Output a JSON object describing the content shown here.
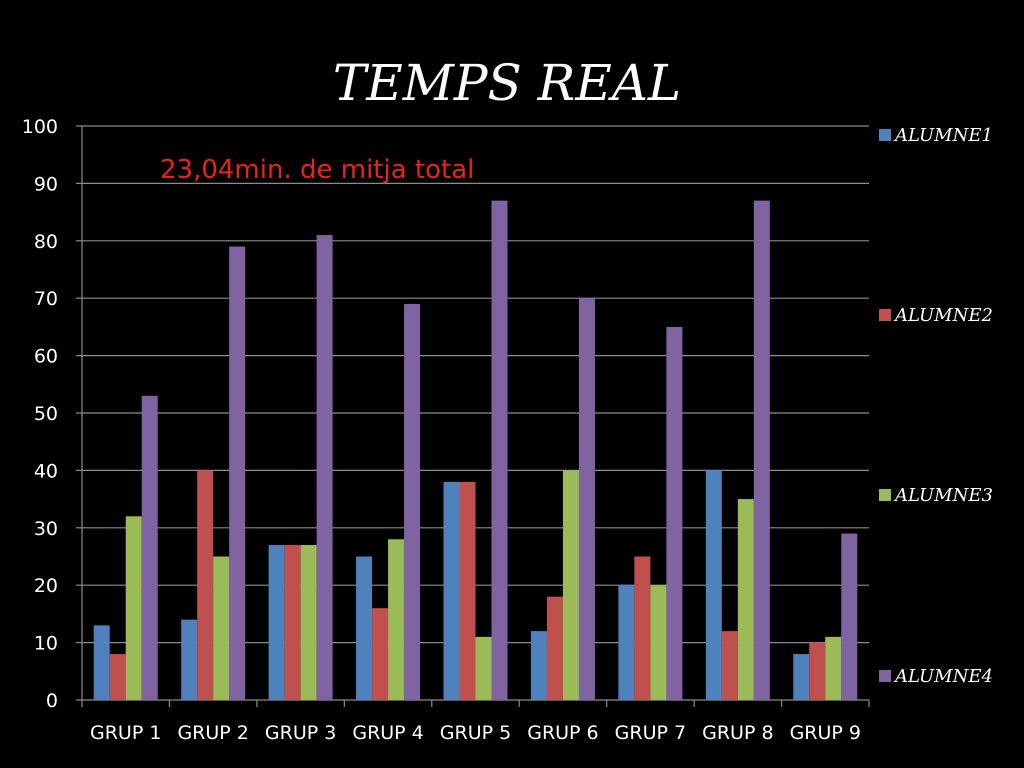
{
  "chart_data": {
    "type": "bar",
    "title": "TEMPS REAL",
    "annotation": "23,04min. de mitja total",
    "categories": [
      "GRUP 1",
      "GRUP 2",
      "GRUP 3",
      "GRUP 4",
      "GRUP 5",
      "GRUP 6",
      "GRUP 7",
      "GRUP 8",
      "GRUP 9"
    ],
    "series": [
      {
        "name": "ALUMNE1",
        "color": "#4f81bd",
        "values": [
          13,
          14,
          27,
          25,
          38,
          12,
          20,
          40,
          8
        ]
      },
      {
        "name": "ALUMNE2",
        "color": "#c0504d",
        "values": [
          8,
          40,
          27,
          16,
          38,
          18,
          25,
          12,
          10
        ]
      },
      {
        "name": "ALUMNE3",
        "color": "#9bbb59",
        "values": [
          32,
          25,
          27,
          28,
          11,
          40,
          20,
          35,
          11
        ]
      },
      {
        "name": "ALUMNE4",
        "color": "#8064a2",
        "values": [
          53,
          79,
          81,
          69,
          87,
          70,
          65,
          87,
          29
        ]
      }
    ],
    "ylim": [
      0,
      100
    ],
    "yticks": [
      "0",
      "10",
      "20",
      "30",
      "40",
      "50",
      "60",
      "70",
      "80",
      "90",
      "100"
    ],
    "grid": true,
    "legend_position": "right",
    "background": "#000000",
    "gridline_color": "#8c8c8c"
  }
}
